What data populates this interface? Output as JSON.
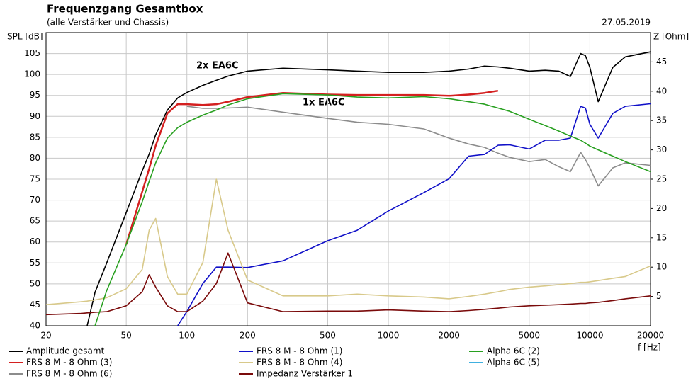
{
  "chart_data": {
    "type": "line",
    "title": "Frequenzgang Gesamtbox",
    "subtitle": "(alle Verstärker und Chassis)",
    "date": "27.05.2019",
    "y_label": "SPL [dB]",
    "y2_label": "Z [Ohm]",
    "x_label": "f [Hz]",
    "annotations": [
      "2x EA6C",
      "1x EA6C"
    ],
    "xscale": "log",
    "grid": true,
    "x": [
      20,
      30,
      32,
      35,
      40,
      50,
      60,
      65,
      70,
      80,
      90,
      100,
      120,
      140,
      160,
      200,
      300,
      500,
      700,
      1000,
      1500,
      2000,
      2500,
      3000,
      3500,
      4000,
      5000,
      6000,
      7000,
      8000,
      9000,
      9500,
      10000,
      11000,
      13000,
      15000,
      20000
    ],
    "xlim": [
      20,
      20000
    ],
    "xticks": [
      20,
      50,
      100,
      200,
      500,
      1000,
      2000,
      5000,
      10000,
      20000
    ],
    "ylim": [
      40,
      110
    ],
    "yticks": [
      40,
      45,
      50,
      55,
      60,
      65,
      70,
      75,
      80,
      85,
      90,
      95,
      100,
      105
    ],
    "y2lim": [
      0,
      50
    ],
    "y2ticks": [
      5,
      10,
      15,
      20,
      25,
      30,
      35,
      40,
      45
    ],
    "series": [
      {
        "name": "Amplitude gesamt",
        "color": "#000000",
        "values": [
          null,
          null,
          40,
          48,
          55,
          67,
          77,
          81,
          85.6,
          91.5,
          94.4,
          95.7,
          97.4,
          98.6,
          99.6,
          100.8,
          101.5,
          101.1,
          100.8,
          100.5,
          100.5,
          100.8,
          101.3,
          102,
          101.8,
          101.5,
          100.8,
          101,
          100.8,
          99.5,
          105,
          104.5,
          101.7,
          93.5,
          101.7,
          104.2,
          105.4
        ]
      },
      {
        "name": "FRS 8 M - 8 Ohm (3)",
        "color": "#d42020",
        "values": [
          null,
          null,
          null,
          null,
          null,
          59.4,
          72,
          77.5,
          83,
          90.7,
          92.9,
          92.9,
          92.7,
          92.9,
          93.5,
          94.6,
          95.6,
          95.2,
          95.1,
          95.1,
          95.1,
          94.9,
          95.2,
          95.6,
          96.1,
          null,
          null,
          null,
          null,
          null,
          null,
          null,
          null,
          null,
          null,
          null,
          null
        ]
      },
      {
        "name": "FRS 8 M - 8 Ohm (6)",
        "color": "#8c8c8c",
        "values": [
          null,
          null,
          null,
          null,
          null,
          null,
          null,
          null,
          null,
          null,
          null,
          92.4,
          91.9,
          91.9,
          92,
          92.2,
          91,
          89.5,
          88.6,
          88.1,
          87,
          84.8,
          83.4,
          82.6,
          81.2,
          80.2,
          79.2,
          79.7,
          78,
          76.8,
          81.4,
          79.7,
          77.7,
          73.4,
          77.7,
          78.9,
          78.3
        ]
      },
      {
        "name": "FRS 8 M - 8 Ohm (1)",
        "color": "#1010c8",
        "values": [
          null,
          null,
          null,
          null,
          null,
          null,
          null,
          null,
          null,
          null,
          40,
          43.4,
          50.1,
          54,
          54,
          53.9,
          55.5,
          60.3,
          62.8,
          67.4,
          71.8,
          75.1,
          80.5,
          80.9,
          83.1,
          83.2,
          82.2,
          84.3,
          84.3,
          84.8,
          92.4,
          92,
          88.1,
          84.8,
          90.7,
          92.4,
          93
        ]
      },
      {
        "name": "FRS 8 M - 8 Ohm (4)",
        "color": "#d8c98a",
        "axis": "y2",
        "values": [
          3.6,
          4.1,
          4.2,
          4.4,
          4.8,
          6.3,
          9.6,
          16.3,
          18.3,
          8.4,
          5.4,
          5.4,
          10.8,
          25,
          16.3,
          7.8,
          5.1,
          5.1,
          5.4,
          5.1,
          4.9,
          4.6,
          5,
          5.4,
          5.8,
          6.2,
          6.6,
          6.8,
          7,
          7.2,
          7.4,
          7.4,
          7.5,
          7.7,
          8.1,
          8.4,
          10.2
        ]
      },
      {
        "name": "Impedanz Verstärker 1",
        "color": "#7a0a0a",
        "axis": "y2",
        "values": [
          1.9,
          2.1,
          2.2,
          2.3,
          2.4,
          3.4,
          5.8,
          8.7,
          6.6,
          3.4,
          2.4,
          2.4,
          4.2,
          7.2,
          12.4,
          3.9,
          2.4,
          2.5,
          2.5,
          2.7,
          2.5,
          2.4,
          2.6,
          2.8,
          3,
          3.2,
          3.4,
          3.5,
          3.6,
          3.7,
          3.8,
          3.8,
          3.9,
          4,
          4.3,
          4.6,
          5.1
        ]
      },
      {
        "name": "Alpha 6C (2)",
        "color": "#28a020",
        "values": [
          null,
          null,
          null,
          40,
          48.4,
          59.4,
          69.6,
          74.5,
          78.9,
          84.8,
          87.3,
          88.6,
          90.3,
          91.5,
          92.7,
          94.2,
          95.4,
          95.1,
          94.6,
          94.4,
          94.7,
          94.2,
          93.5,
          92.9,
          92,
          91.2,
          89.3,
          87.8,
          86.5,
          85.3,
          84.3,
          83.6,
          82.9,
          82,
          80.5,
          79.2,
          76.8
        ]
      },
      {
        "name": "Alpha 6C (5)",
        "color": "#40b0e0",
        "values": [
          null,
          null,
          null,
          null,
          null,
          null,
          null,
          null,
          null,
          null,
          null,
          null,
          null,
          null,
          null,
          null,
          null,
          null,
          null,
          null,
          null,
          null,
          null,
          null,
          null,
          null,
          null,
          null,
          null,
          null,
          null,
          null,
          null,
          null,
          null,
          null,
          null
        ]
      }
    ]
  }
}
